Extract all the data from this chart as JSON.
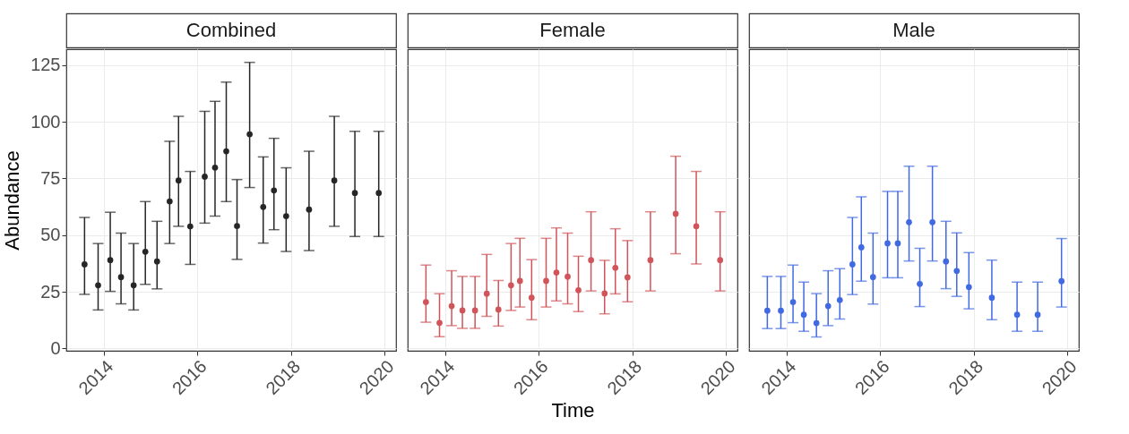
{
  "chart_data": [
    {
      "type": "scatter",
      "title": "Combined",
      "ylabel": "Abundance",
      "x": [
        2013.59,
        2013.88,
        2014.14,
        2014.37,
        2014.64,
        2014.89,
        2015.14,
        2015.41,
        2015.6,
        2015.85,
        2016.16,
        2016.38,
        2016.62,
        2016.85,
        2017.12,
        2017.41,
        2017.64,
        2017.9,
        2018.39,
        2018.93,
        2019.37,
        2019.88
      ],
      "xlim": [
        2013.2,
        2020.25
      ],
      "xticks": [
        2014,
        2016,
        2018,
        2020
      ],
      "ylim": [
        -1,
        132
      ],
      "yticks": [
        0,
        25,
        50,
        75,
        100,
        125
      ],
      "grid": true,
      "marker": "circle",
      "series": [
        {
          "color": "#262626",
          "values": [
            37.1,
            27.9,
            39.0,
            31.5,
            27.9,
            42.7,
            38.4,
            64.9,
            74.1,
            53.8,
            75.8,
            79.8,
            87.0,
            54.0,
            94.5,
            62.4,
            69.7,
            58.4,
            61.3,
            74.1,
            68.6,
            68.6
          ],
          "errors": [
            [
              23.9,
              57.8
            ],
            [
              17.0,
              46.3
            ],
            [
              25.2,
              60.1
            ],
            [
              19.7,
              50.9
            ],
            [
              17.0,
              46.3
            ],
            [
              28.3,
              64.8
            ],
            [
              26.3,
              56.1
            ],
            [
              46.3,
              91.4
            ],
            [
              53.9,
              102.4
            ],
            [
              37.1,
              78.1
            ],
            [
              55.3,
              104.6
            ],
            [
              58.4,
              109.0
            ],
            [
              64.8,
              117.5
            ],
            [
              39.3,
              74.5
            ],
            [
              71.0,
              126.2
            ],
            [
              46.5,
              84.5
            ],
            [
              52.4,
              92.7
            ],
            [
              42.8,
              79.7
            ],
            [
              43.2,
              87.0
            ],
            [
              53.9,
              102.4
            ],
            [
              49.4,
              95.8
            ],
            [
              49.4,
              95.8
            ]
          ]
        }
      ]
    },
    {
      "type": "scatter",
      "title": "Female",
      "xlabel": "Time",
      "x": [
        2013.59,
        2013.88,
        2014.14,
        2014.37,
        2014.64,
        2014.89,
        2015.14,
        2015.41,
        2015.6,
        2015.85,
        2016.16,
        2016.38,
        2016.62,
        2016.85,
        2017.12,
        2017.41,
        2017.64,
        2017.9,
        2018.39,
        2018.93,
        2019.37,
        2019.88
      ],
      "xlim": [
        2013.2,
        2020.25
      ],
      "xticks": [
        2014,
        2016,
        2018,
        2020
      ],
      "ylim": [
        -1,
        132
      ],
      "yticks": [
        0,
        25,
        50,
        75,
        100,
        125
      ],
      "grid": true,
      "marker": "circle",
      "tick_labels": "x",
      "series": [
        {
          "color": "#d0545a",
          "values": [
            20.5,
            11.3,
            18.7,
            16.8,
            16.8,
            24.2,
            17.2,
            27.9,
            29.8,
            22.4,
            29.8,
            33.5,
            31.7,
            25.7,
            39.0,
            24.3,
            35.6,
            31.4,
            39.0,
            59.4,
            53.9,
            39.0
          ],
          "errors": [
            [
              11.6,
              36.8
            ],
            [
              5.2,
              24.2
            ],
            [
              10.1,
              34.3
            ],
            [
              8.9,
              31.8
            ],
            [
              8.9,
              31.8
            ],
            [
              14.2,
              41.5
            ],
            [
              9.9,
              30.0
            ],
            [
              16.8,
              46.3
            ],
            [
              18.3,
              48.6
            ],
            [
              12.7,
              39.2
            ],
            [
              18.3,
              48.6
            ],
            [
              21.0,
              53.2
            ],
            [
              19.7,
              50.9
            ],
            [
              16.3,
              40.7
            ],
            [
              25.4,
              60.3
            ],
            [
              15.3,
              38.9
            ],
            [
              24.1,
              52.8
            ],
            [
              20.6,
              47.6
            ],
            [
              25.4,
              60.3
            ],
            [
              41.8,
              84.8
            ],
            [
              37.3,
              78.1
            ],
            [
              25.4,
              60.3
            ]
          ]
        }
      ]
    },
    {
      "type": "scatter",
      "title": "Male",
      "x": [
        2013.59,
        2013.88,
        2014.14,
        2014.37,
        2014.64,
        2014.89,
        2015.14,
        2015.41,
        2015.6,
        2015.85,
        2016.16,
        2016.38,
        2016.62,
        2016.85,
        2017.12,
        2017.41,
        2017.64,
        2017.9,
        2018.39,
        2018.93,
        2019.37,
        2019.88
      ],
      "xlim": [
        2013.2,
        2020.25
      ],
      "xticks": [
        2014,
        2016,
        2018,
        2020
      ],
      "ylim": [
        -1,
        132
      ],
      "yticks": [
        0,
        25,
        50,
        75,
        100,
        125
      ],
      "grid": true,
      "marker": "circle",
      "tick_labels": "x",
      "series": [
        {
          "color": "#4169e1",
          "values": [
            16.7,
            16.7,
            20.5,
            14.9,
            11.2,
            18.7,
            21.4,
            37.1,
            44.6,
            31.5,
            46.4,
            46.4,
            55.7,
            28.5,
            55.7,
            38.4,
            34.2,
            27.1,
            22.4,
            14.9,
            14.9,
            29.7
          ],
          "errors": [
            [
              8.8,
              31.8
            ],
            [
              8.8,
              31.8
            ],
            [
              11.4,
              36.8
            ],
            [
              7.6,
              29.3
            ],
            [
              5.1,
              24.2
            ],
            [
              10.1,
              34.3
            ],
            [
              13.0,
              35.2
            ],
            [
              23.8,
              57.8
            ],
            [
              29.7,
              66.9
            ],
            [
              19.6,
              50.9
            ],
            [
              31.2,
              69.3
            ],
            [
              31.2,
              69.3
            ],
            [
              38.6,
              80.4
            ],
            [
              18.5,
              44.2
            ],
            [
              38.6,
              80.4
            ],
            [
              26.4,
              56.1
            ],
            [
              23.0,
              51.0
            ],
            [
              17.5,
              42.3
            ],
            [
              12.7,
              39.0
            ],
            [
              7.6,
              29.3
            ],
            [
              7.6,
              29.3
            ],
            [
              18.3,
              48.5
            ]
          ]
        }
      ]
    }
  ]
}
